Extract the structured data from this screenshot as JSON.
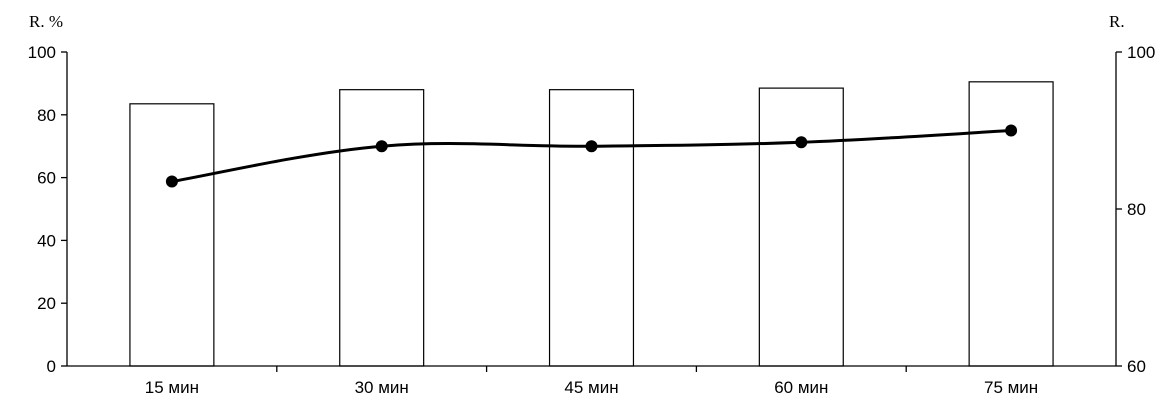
{
  "chart_data": {
    "type": "bar",
    "categories": [
      "15 мин",
      "30 мин",
      "45 мин",
      "60 мин",
      "75 мин"
    ],
    "series": [
      {
        "type": "bar",
        "axis": "left",
        "values": [
          83.5,
          88,
          88,
          88.5,
          90.5
        ]
      },
      {
        "type": "line",
        "axis": "right",
        "values": [
          83.5,
          88,
          88,
          88.5,
          90
        ]
      }
    ],
    "ylabel": "R. %",
    "y2label": "R.",
    "ylim": [
      0,
      100
    ],
    "y2lim": [
      60,
      100
    ],
    "yticks": [
      "0",
      "20",
      "40",
      "60",
      "80",
      "100"
    ],
    "y2ticks": [
      "60",
      "80",
      "100"
    ],
    "bar_color": "#ffffff",
    "line_color": "#000000",
    "grid": false
  }
}
